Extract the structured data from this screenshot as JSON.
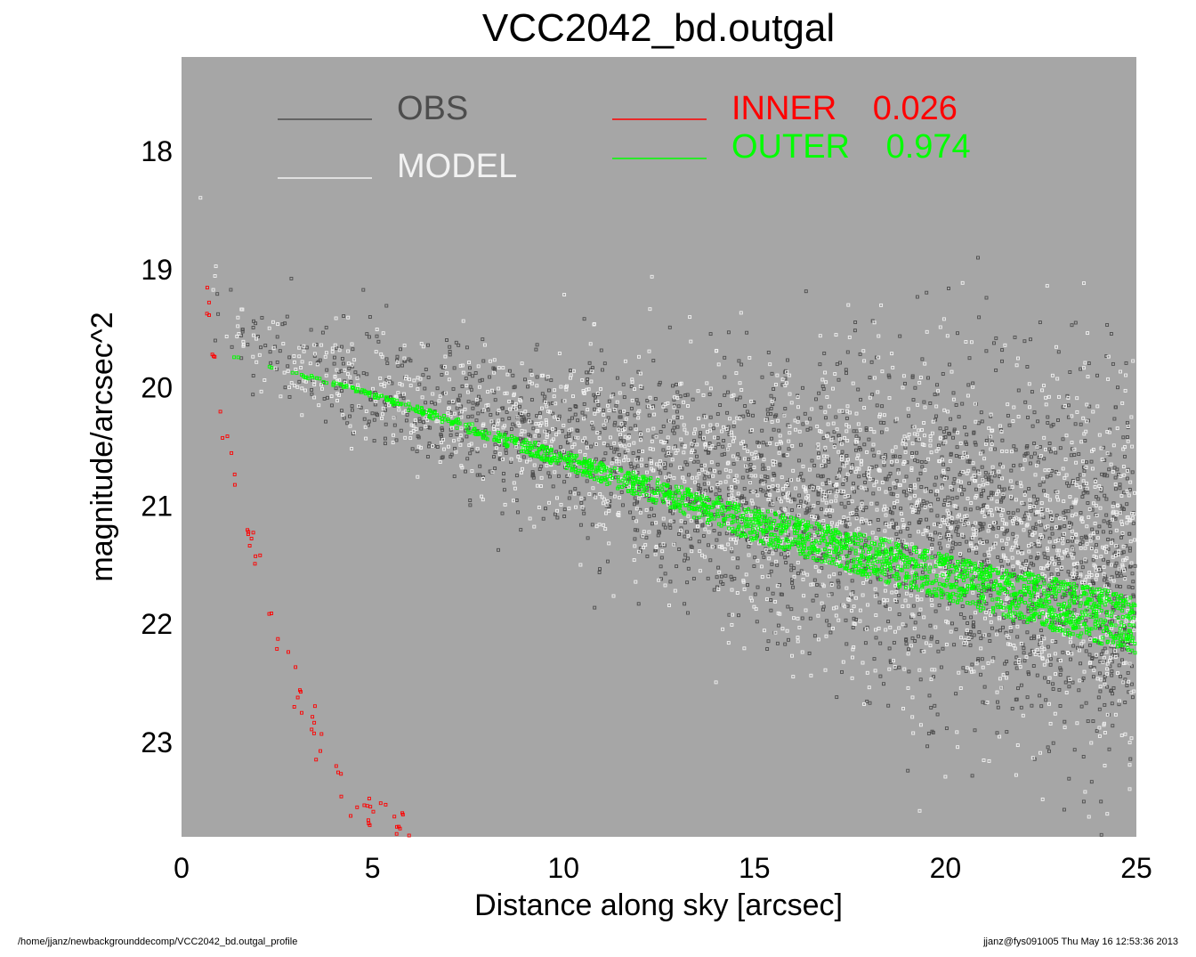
{
  "chart_data": {
    "type": "scatter",
    "title": "VCC2042_bd.outgal",
    "xlabel": "Distance along sky [arcsec]",
    "ylabel": "magnitude/arcsec^2",
    "xlim": [
      0,
      25
    ],
    "ylim": [
      23.8,
      17.2
    ],
    "y_inverted": true,
    "x_ticks": [
      0,
      5,
      10,
      15,
      20,
      25
    ],
    "y_ticks": [
      18,
      19,
      20,
      21,
      22,
      23
    ],
    "background_color": "#a6a6a6",
    "grid": false,
    "legend_position": "top",
    "series": [
      {
        "name": "OBS",
        "color": "#4d4d4d",
        "profile": {
          "x": [
            0.2,
            1,
            2,
            5,
            10,
            15,
            20,
            25
          ],
          "y": [
            18.0,
            19.4,
            19.7,
            20.0,
            20.45,
            20.85,
            21.2,
            21.6
          ]
        },
        "scatter": {
          "x0": [
            0,
            5,
            10,
            15,
            20,
            25
          ],
          "sigma": [
            0.15,
            0.25,
            0.4,
            0.55,
            0.7,
            0.8
          ]
        }
      },
      {
        "name": "MODEL",
        "color": "#f2f2f2",
        "profile": {
          "x": [
            0.2,
            1,
            2,
            5,
            10,
            15,
            20,
            25
          ],
          "y": [
            18.0,
            19.4,
            19.7,
            20.0,
            20.45,
            20.85,
            21.2,
            21.6
          ]
        },
        "scatter": {
          "x0": [
            0,
            5,
            10,
            15,
            20,
            25
          ],
          "sigma": [
            0.15,
            0.25,
            0.4,
            0.55,
            0.7,
            0.8
          ]
        }
      },
      {
        "name": "INNER",
        "value_label": "0.026",
        "color": "#ff0000",
        "profile": {
          "x": [
            0.5,
            1,
            1.5,
            2,
            2.5,
            3,
            3.5,
            4,
            4.5,
            5,
            5.5,
            6
          ],
          "y": [
            18.85,
            20.3,
            20.95,
            21.5,
            22.1,
            22.55,
            22.95,
            23.25,
            23.5,
            23.62,
            23.7,
            23.78
          ]
        },
        "scatter": {
          "x0": [
            0,
            25
          ],
          "sigma": [
            0.1,
            0.1
          ]
        }
      },
      {
        "name": "OUTER",
        "value_label": "0.974",
        "color": "#00ff00",
        "profile": {
          "x": [
            0.5,
            1,
            2,
            5,
            10,
            15,
            20,
            25
          ],
          "y": [
            19.67,
            19.7,
            19.78,
            20.05,
            20.6,
            21.15,
            21.6,
            22.0
          ]
        },
        "band": {
          "x0": [
            0,
            5,
            10,
            15,
            20,
            25
          ],
          "halfwidth": [
            0.01,
            0.02,
            0.07,
            0.14,
            0.2,
            0.24
          ]
        }
      }
    ]
  },
  "footer": {
    "left": "/home/jjanz/newbackgrounddecomp/VCC2042_bd.outgal_profile",
    "right": "jjanz@fys091005  Thu May 16 12:53:36 2013"
  }
}
